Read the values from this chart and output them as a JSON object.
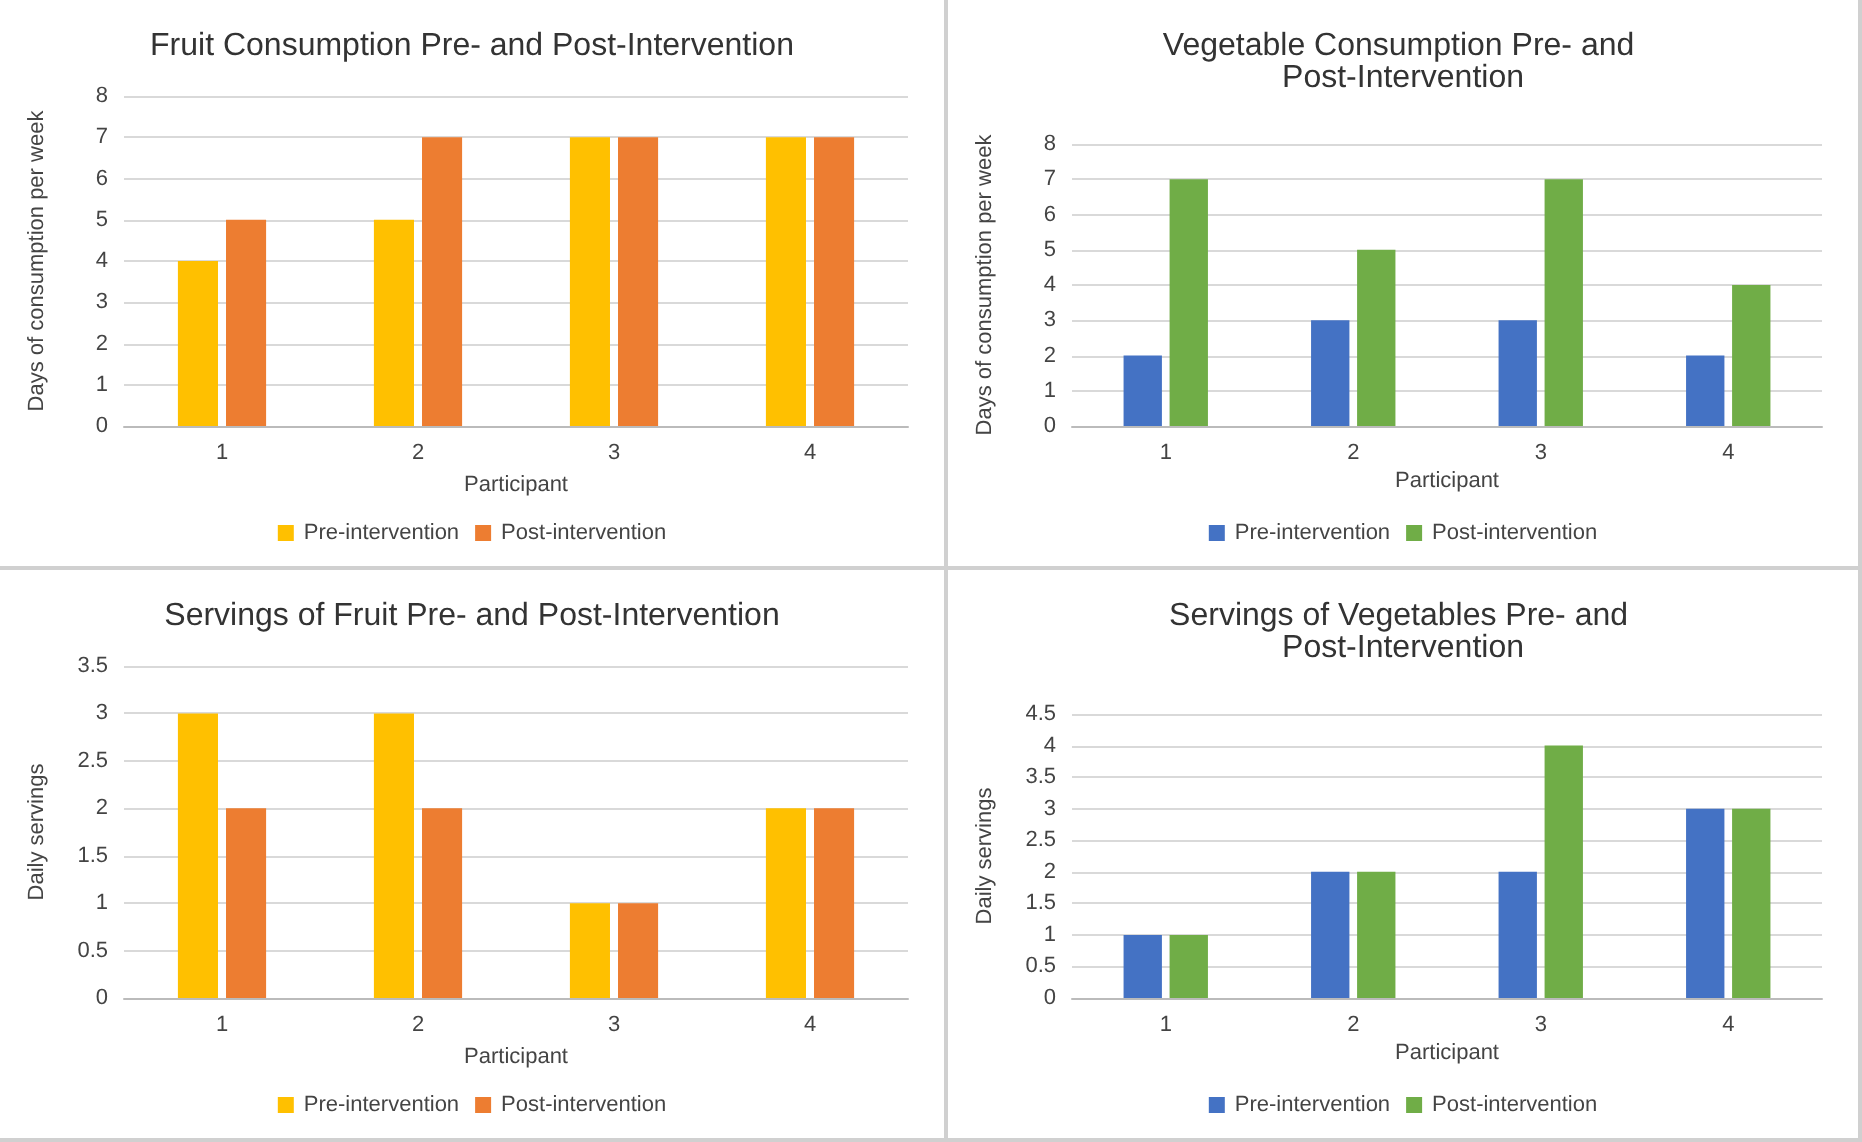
{
  "chart_data": [
    {
      "type": "bar",
      "title": "Fruit Consumption Pre- and Post-Intervention",
      "xlabel": "Participant",
      "ylabel": "Days of consumption per week",
      "categories": [
        "1",
        "2",
        "3",
        "4"
      ],
      "series": [
        {
          "name": "Pre-intervention",
          "color": "#ffc000",
          "values": [
            4,
            5,
            7,
            7
          ]
        },
        {
          "name": "Post-intervention",
          "color": "#ed7d31",
          "values": [
            5,
            7,
            7,
            7
          ]
        }
      ],
      "ylim": [
        0,
        8
      ],
      "yticks": [
        0,
        1,
        2,
        3,
        4,
        5,
        6,
        7,
        8
      ],
      "grid": "y",
      "legend": "bottom"
    },
    {
      "type": "bar",
      "title": "Vegetable Consumption Pre- and Post-Intervention",
      "xlabel": "Participant",
      "ylabel": "Days of consumption per week",
      "categories": [
        "1",
        "2",
        "3",
        "4"
      ],
      "series": [
        {
          "name": "Pre-intervention",
          "color": "#4472c4",
          "values": [
            2,
            3,
            3,
            2
          ]
        },
        {
          "name": "Post-intervention",
          "color": "#70ad47",
          "values": [
            7,
            5,
            7,
            4
          ]
        }
      ],
      "ylim": [
        0,
        8
      ],
      "yticks": [
        0,
        1,
        2,
        3,
        4,
        5,
        6,
        7,
        8
      ],
      "grid": "y",
      "legend": "bottom"
    },
    {
      "type": "bar",
      "title": "Servings of Fruit Pre- and Post-Intervention",
      "xlabel": "Participant",
      "ylabel": "Daily servings",
      "categories": [
        "1",
        "2",
        "3",
        "4"
      ],
      "series": [
        {
          "name": "Pre-intervention",
          "color": "#ffc000",
          "values": [
            3,
            3,
            1,
            2
          ]
        },
        {
          "name": "Post-intervention",
          "color": "#ed7d31",
          "values": [
            2,
            2,
            1,
            2
          ]
        }
      ],
      "ylim": [
        0,
        3.5
      ],
      "yticks": [
        0,
        0.5,
        1,
        1.5,
        2,
        2.5,
        3,
        3.5
      ],
      "grid": "y",
      "legend": "bottom"
    },
    {
      "type": "bar",
      "title": "Servings of Vegetables Pre- and Post-Intervention",
      "xlabel": "Participant",
      "ylabel": "Daily servings",
      "categories": [
        "1",
        "2",
        "3",
        "4"
      ],
      "series": [
        {
          "name": "Pre-intervention",
          "color": "#4472c4",
          "values": [
            1,
            2,
            2,
            3
          ]
        },
        {
          "name": "Post-intervention",
          "color": "#70ad47",
          "values": [
            1,
            2,
            4,
            3
          ]
        }
      ],
      "ylim": [
        0,
        4.5
      ],
      "yticks": [
        0,
        0.5,
        1,
        1.5,
        2,
        2.5,
        3,
        3.5,
        4,
        4.5
      ],
      "grid": "y",
      "legend": "bottom"
    }
  ]
}
